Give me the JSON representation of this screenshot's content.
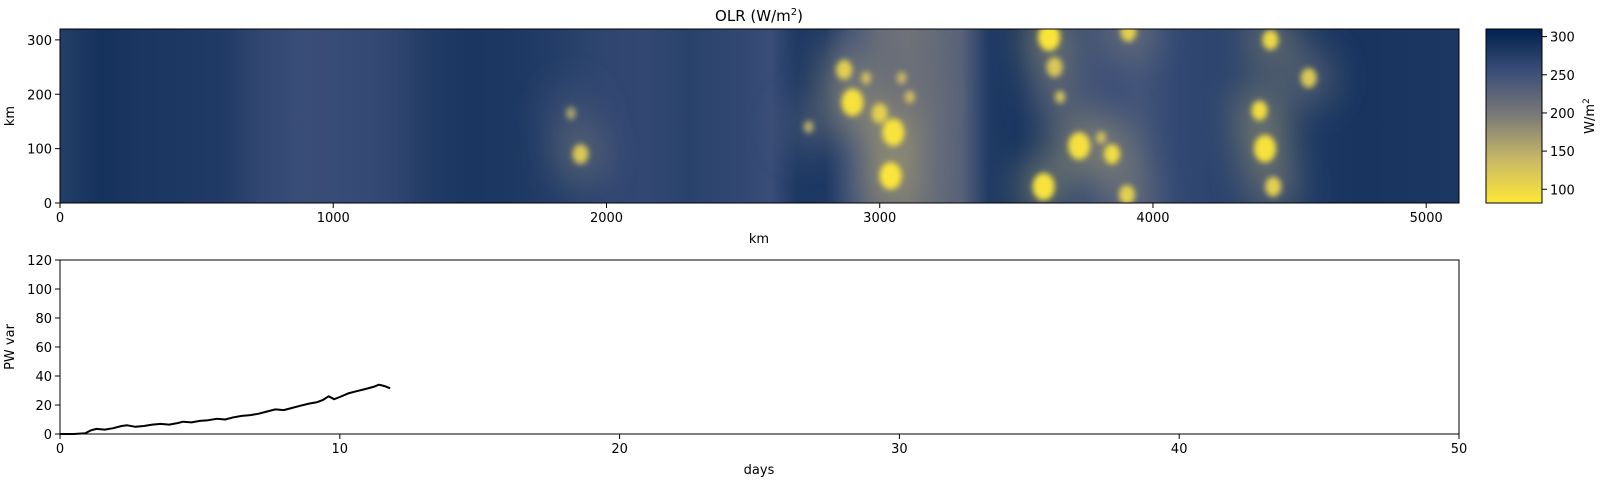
{
  "chart_data": [
    {
      "type": "heatmap",
      "title": "OLR (W/m",
      "title_superscript": "2",
      "title_suffix": ")",
      "xlabel": "km",
      "ylabel": "km",
      "xlim": [
        0,
        5120
      ],
      "ylim": [
        0,
        320
      ],
      "xticks": [
        0,
        1000,
        2000,
        3000,
        4000,
        5000
      ],
      "yticks": [
        0,
        100,
        200,
        300
      ],
      "colormap": {
        "name": "cividis",
        "label": "W/m",
        "label_superscript": "2",
        "range": [
          82,
          310
        ],
        "ticks": [
          100,
          150,
          200,
          250,
          300
        ],
        "low_color": "#fee838",
        "mid_color": "#7c7b78",
        "high_color": "#00224e"
      },
      "background_olr": [
        275,
        290,
        285,
        282,
        278,
        262,
        255,
        258,
        262,
        278,
        285,
        282,
        276,
        270,
        264,
        262,
        270,
        262,
        255,
        282,
        282,
        245,
        215,
        205,
        228,
        280,
        287,
        280,
        268,
        255,
        248,
        262,
        270,
        280,
        287,
        283
      ],
      "background_x_km": [
        0,
        150,
        300,
        450,
        600,
        750,
        900,
        1050,
        1200,
        1350,
        1500,
        1650,
        1800,
        1900,
        2000,
        2150,
        2300,
        2500,
        2600,
        2700,
        2800,
        2900,
        3000,
        3100,
        3300,
        3400,
        3500,
        3600,
        3700,
        3800,
        3950,
        4100,
        4300,
        4500,
        4750,
        5120
      ],
      "cold_cloud_cores": [
        {
          "x": 1870,
          "y": 165,
          "olr": 160
        },
        {
          "x": 1905,
          "y": 90,
          "olr": 120
        },
        {
          "x": 2740,
          "y": 140,
          "olr": 150
        },
        {
          "x": 2870,
          "y": 245,
          "olr": 110
        },
        {
          "x": 2900,
          "y": 185,
          "olr": 90
        },
        {
          "x": 2950,
          "y": 230,
          "olr": 130
        },
        {
          "x": 3000,
          "y": 165,
          "olr": 110
        },
        {
          "x": 3040,
          "y": 50,
          "olr": 85
        },
        {
          "x": 3050,
          "y": 130,
          "olr": 88
        },
        {
          "x": 3080,
          "y": 230,
          "olr": 140
        },
        {
          "x": 3110,
          "y": 195,
          "olr": 130
        },
        {
          "x": 3620,
          "y": 305,
          "olr": 85
        },
        {
          "x": 3600,
          "y": 30,
          "olr": 88
        },
        {
          "x": 3640,
          "y": 250,
          "olr": 120
        },
        {
          "x": 3660,
          "y": 195,
          "olr": 125
        },
        {
          "x": 3730,
          "y": 105,
          "olr": 92
        },
        {
          "x": 3810,
          "y": 120,
          "olr": 130
        },
        {
          "x": 3850,
          "y": 90,
          "olr": 95
        },
        {
          "x": 3905,
          "y": 15,
          "olr": 110
        },
        {
          "x": 3910,
          "y": 315,
          "olr": 110
        },
        {
          "x": 4390,
          "y": 170,
          "olr": 95
        },
        {
          "x": 4410,
          "y": 100,
          "olr": 90
        },
        {
          "x": 4430,
          "y": 300,
          "olr": 100
        },
        {
          "x": 4440,
          "y": 30,
          "olr": 110
        },
        {
          "x": 4570,
          "y": 230,
          "olr": 120
        }
      ]
    },
    {
      "type": "line",
      "xlabel": "days",
      "ylabel": "PW var",
      "xlim": [
        0,
        50
      ],
      "ylim": [
        0,
        120
      ],
      "xticks": [
        0,
        10,
        20,
        30,
        40,
        50
      ],
      "yticks": [
        0,
        20,
        40,
        60,
        80,
        100,
        120
      ],
      "line_color": "#000000",
      "x": [
        0,
        0.5,
        0.9,
        1.1,
        1.3,
        1.6,
        1.9,
        2.2,
        2.4,
        2.7,
        3.0,
        3.3,
        3.6,
        3.9,
        4.2,
        4.4,
        4.7,
        5.0,
        5.3,
        5.6,
        5.9,
        6.2,
        6.5,
        6.8,
        7.1,
        7.4,
        7.7,
        8.0,
        8.3,
        8.6,
        8.9,
        9.2,
        9.4,
        9.6,
        9.8,
        10.0,
        10.3,
        10.6,
        10.9,
        11.2,
        11.4,
        11.6,
        11.8
      ],
      "y": [
        0,
        0,
        0.5,
        2.5,
        3.5,
        3.0,
        4.0,
        5.5,
        6.0,
        5.0,
        5.5,
        6.5,
        7.0,
        6.5,
        7.5,
        8.5,
        8.0,
        9.0,
        9.5,
        10.5,
        10.0,
        11.5,
        12.5,
        13.0,
        14.0,
        15.5,
        17.0,
        16.5,
        18.0,
        19.5,
        21.0,
        22.0,
        23.5,
        26.0,
        24.0,
        25.5,
        28.0,
        29.5,
        31.0,
        32.5,
        34.0,
        33.0,
        31.5
      ]
    }
  ]
}
